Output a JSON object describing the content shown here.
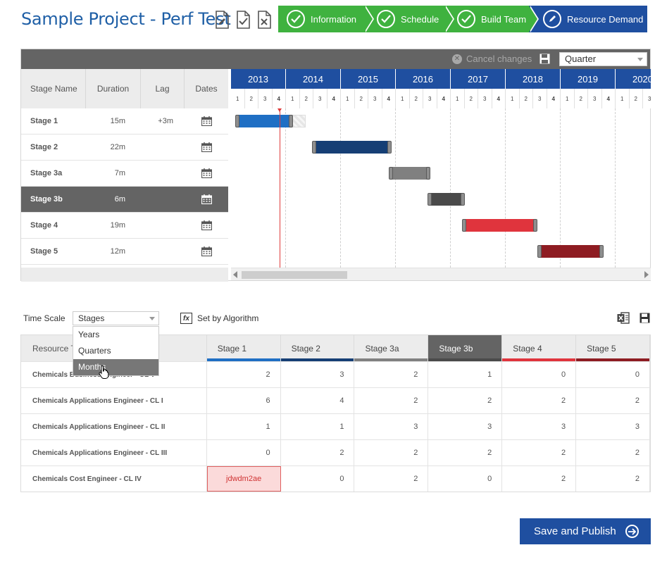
{
  "project_title": "Sample Project - Perf Test",
  "steps": [
    {
      "label": "Information",
      "state": "done"
    },
    {
      "label": "Schedule",
      "state": "done"
    },
    {
      "label": "Build Team",
      "state": "done"
    },
    {
      "label": "Resource Demand",
      "state": "active"
    }
  ],
  "gantt": {
    "cancel_label": "Cancel changes",
    "scale_select": "Quarter",
    "columns": [
      "Stage Name",
      "Duration",
      "Lag",
      "Dates"
    ],
    "years": [
      "2013",
      "2014",
      "2015",
      "2016",
      "2017",
      "2018",
      "2019",
      "2020"
    ],
    "quarters": [
      "1",
      "2",
      "3",
      "4"
    ],
    "stages": [
      {
        "name": "Stage 1",
        "duration": "15m",
        "lag": "+3m",
        "color": "#1f6fc4",
        "start_q": 0,
        "len_q": 4,
        "lag_q": 1,
        "selected": false
      },
      {
        "name": "Stage 2",
        "duration": "22m",
        "lag": "",
        "color": "#163f75",
        "start_q": 5.6,
        "len_q": 5.6,
        "selected": false
      },
      {
        "name": "Stage 3a",
        "duration": "7m",
        "lag": "",
        "color": "#808080",
        "start_q": 11.2,
        "len_q": 2.8,
        "selected": false
      },
      {
        "name": "Stage 3b",
        "duration": "6m",
        "lag": "",
        "color": "#4a4a4a",
        "start_q": 14,
        "len_q": 2.5,
        "selected": true
      },
      {
        "name": "Stage 4",
        "duration": "19m",
        "lag": "",
        "color": "#e0343d",
        "start_q": 16.5,
        "len_q": 5.3,
        "selected": false
      },
      {
        "name": "Stage 5",
        "duration": "12m",
        "lag": "",
        "color": "#8e1c22",
        "start_q": 22,
        "len_q": 4.6,
        "selected": false
      }
    ]
  },
  "time_scale": {
    "label": "Time Scale",
    "selected": "Stages",
    "options": [
      "Years",
      "Quarters",
      "Months"
    ],
    "highlighted": "Months"
  },
  "set_by_algorithm": "Set by Algorithm",
  "resource_table": {
    "first_col": "Resource T",
    "stages": [
      {
        "label": "Stage 1",
        "color": "#1f6fc4"
      },
      {
        "label": "Stage 2",
        "color": "#163f75"
      },
      {
        "label": "Stage 3a",
        "color": "#808080"
      },
      {
        "label": "Stage 3b",
        "color": "#4a4a4a"
      },
      {
        "label": "Stage 4",
        "color": "#e0343d"
      },
      {
        "label": "Stage 5",
        "color": "#8e1c22"
      }
    ],
    "rows": [
      {
        "name": "Chemicals Business Engineer - CL V",
        "values": [
          "2",
          "3",
          "2",
          "1",
          "0",
          "0"
        ]
      },
      {
        "name": "Chemicals Applications Engineer - CL I",
        "values": [
          "6",
          "4",
          "2",
          "2",
          "2",
          "2"
        ]
      },
      {
        "name": "Chemicals Applications Engineer - CL II",
        "values": [
          "1",
          "1",
          "3",
          "3",
          "3",
          "3"
        ]
      },
      {
        "name": "Chemicals Applications Engineer - CL III",
        "values": [
          "0",
          "2",
          "2",
          "2",
          "2",
          "2"
        ]
      },
      {
        "name": "Chemicals Cost Engineer - CL IV",
        "values": [
          "jdwdm2ae",
          "0",
          "2",
          "0",
          "2",
          "2"
        ],
        "error_col": 0
      }
    ]
  },
  "publish_label": "Save and Publish"
}
